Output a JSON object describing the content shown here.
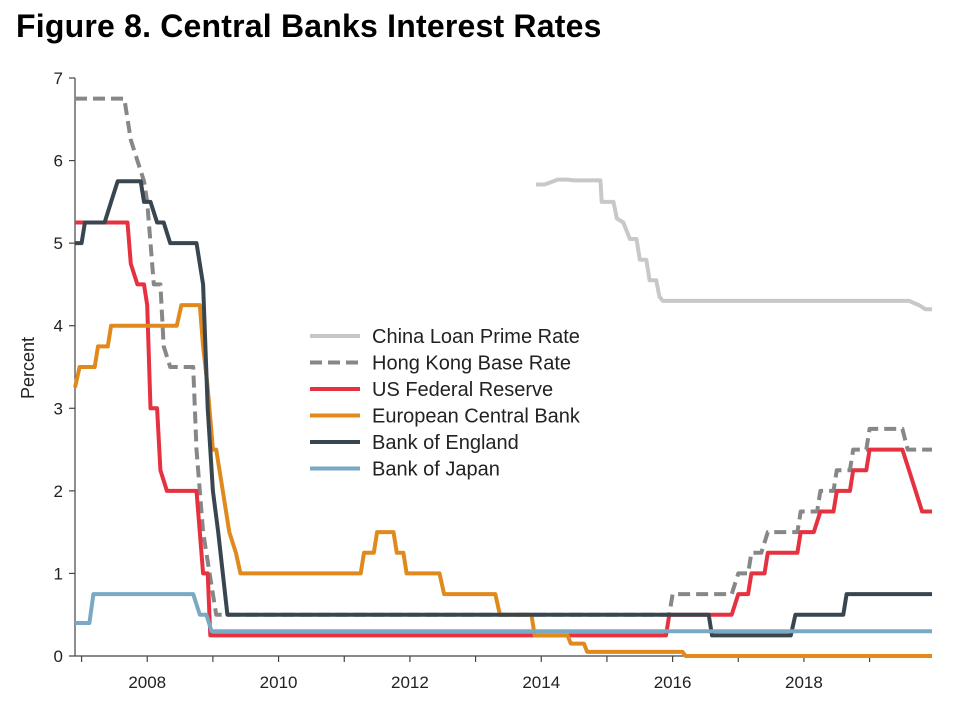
{
  "chart_data": {
    "type": "line",
    "title": "Figure 8. Central Banks Interest Rates",
    "ylabel": "Percent",
    "xlabel": "",
    "xlim": [
      2006.9,
      2019.95
    ],
    "ylim": [
      0,
      7
    ],
    "y_ticks": [
      "0",
      "1",
      "2",
      "3",
      "4",
      "5",
      "6",
      "7"
    ],
    "x_ticks": [
      "2008",
      "2010",
      "2012",
      "2014",
      "2016",
      "2018"
    ],
    "grid": false,
    "legend_position": "center",
    "series": [
      {
        "name": "China Loan Prime Rate",
        "color": "#c8c8c8",
        "dashed": false,
        "points": [
          [
            2013.92,
            5.71
          ],
          [
            2014.05,
            5.71
          ],
          [
            2014.12,
            5.73
          ],
          [
            2014.25,
            5.77
          ],
          [
            2014.4,
            5.77
          ],
          [
            2014.5,
            5.76
          ],
          [
            2014.9,
            5.76
          ],
          [
            2014.92,
            5.5
          ],
          [
            2015.1,
            5.5
          ],
          [
            2015.15,
            5.3
          ],
          [
            2015.25,
            5.25
          ],
          [
            2015.35,
            5.05
          ],
          [
            2015.45,
            5.05
          ],
          [
            2015.5,
            4.8
          ],
          [
            2015.6,
            4.8
          ],
          [
            2015.65,
            4.55
          ],
          [
            2015.75,
            4.55
          ],
          [
            2015.8,
            4.35
          ],
          [
            2015.85,
            4.3
          ],
          [
            2019.6,
            4.3
          ],
          [
            2019.75,
            4.25
          ],
          [
            2019.85,
            4.2
          ],
          [
            2019.95,
            4.2
          ]
        ]
      },
      {
        "name": "Hong Kong Base Rate",
        "color": "#878787",
        "dashed": true,
        "points": [
          [
            2006.9,
            6.75
          ],
          [
            2007.65,
            6.75
          ],
          [
            2007.75,
            6.25
          ],
          [
            2007.85,
            6.0
          ],
          [
            2007.95,
            5.75
          ],
          [
            2008.0,
            5.5
          ],
          [
            2008.05,
            5.0
          ],
          [
            2008.1,
            4.5
          ],
          [
            2008.2,
            4.5
          ],
          [
            2008.25,
            3.75
          ],
          [
            2008.35,
            3.5
          ],
          [
            2008.7,
            3.5
          ],
          [
            2008.75,
            2.5
          ],
          [
            2008.85,
            1.5
          ],
          [
            2008.95,
            1.0
          ],
          [
            2009.05,
            0.5
          ],
          [
            2015.95,
            0.5
          ],
          [
            2016.0,
            0.75
          ],
          [
            2016.9,
            0.75
          ],
          [
            2017.0,
            1.0
          ],
          [
            2017.15,
            1.0
          ],
          [
            2017.2,
            1.25
          ],
          [
            2017.35,
            1.25
          ],
          [
            2017.45,
            1.5
          ],
          [
            2017.9,
            1.5
          ],
          [
            2017.95,
            1.75
          ],
          [
            2018.2,
            1.75
          ],
          [
            2018.25,
            2.0
          ],
          [
            2018.45,
            2.0
          ],
          [
            2018.5,
            2.25
          ],
          [
            2018.7,
            2.25
          ],
          [
            2018.75,
            2.5
          ],
          [
            2018.95,
            2.5
          ],
          [
            2019.0,
            2.75
          ],
          [
            2019.5,
            2.75
          ],
          [
            2019.58,
            2.5
          ],
          [
            2019.95,
            2.5
          ]
        ]
      },
      {
        "name": "US Federal Reserve",
        "color": "#e63140",
        "dashed": false,
        "points": [
          [
            2006.9,
            5.25
          ],
          [
            2007.7,
            5.25
          ],
          [
            2007.75,
            4.75
          ],
          [
            2007.85,
            4.5
          ],
          [
            2007.95,
            4.5
          ],
          [
            2008.0,
            4.25
          ],
          [
            2008.05,
            3.0
          ],
          [
            2008.15,
            3.0
          ],
          [
            2008.2,
            2.25
          ],
          [
            2008.3,
            2.0
          ],
          [
            2008.75,
            2.0
          ],
          [
            2008.8,
            1.5
          ],
          [
            2008.85,
            1.0
          ],
          [
            2008.92,
            1.0
          ],
          [
            2008.96,
            0.25
          ],
          [
            2015.9,
            0.25
          ],
          [
            2015.95,
            0.5
          ],
          [
            2016.9,
            0.5
          ],
          [
            2017.0,
            0.75
          ],
          [
            2017.15,
            0.75
          ],
          [
            2017.2,
            1.0
          ],
          [
            2017.4,
            1.0
          ],
          [
            2017.45,
            1.25
          ],
          [
            2017.9,
            1.25
          ],
          [
            2017.95,
            1.5
          ],
          [
            2018.15,
            1.5
          ],
          [
            2018.25,
            1.75
          ],
          [
            2018.45,
            1.75
          ],
          [
            2018.5,
            2.0
          ],
          [
            2018.7,
            2.0
          ],
          [
            2018.75,
            2.25
          ],
          [
            2018.95,
            2.25
          ],
          [
            2019.0,
            2.5
          ],
          [
            2019.5,
            2.5
          ],
          [
            2019.6,
            2.25
          ],
          [
            2019.7,
            2.0
          ],
          [
            2019.8,
            1.75
          ],
          [
            2019.95,
            1.75
          ]
        ]
      },
      {
        "name": "European Central Bank",
        "color": "#e08a1e",
        "dashed": false,
        "points": [
          [
            2006.9,
            3.25
          ],
          [
            2006.97,
            3.5
          ],
          [
            2007.2,
            3.5
          ],
          [
            2007.25,
            3.75
          ],
          [
            2007.4,
            3.75
          ],
          [
            2007.45,
            4.0
          ],
          [
            2008.45,
            4.0
          ],
          [
            2008.52,
            4.25
          ],
          [
            2008.8,
            4.25
          ],
          [
            2008.85,
            3.75
          ],
          [
            2008.92,
            3.25
          ],
          [
            2009.0,
            2.5
          ],
          [
            2009.05,
            2.5
          ],
          [
            2009.15,
            2.0
          ],
          [
            2009.25,
            1.5
          ],
          [
            2009.35,
            1.25
          ],
          [
            2009.42,
            1.0
          ],
          [
            2011.25,
            1.0
          ],
          [
            2011.3,
            1.25
          ],
          [
            2011.45,
            1.25
          ],
          [
            2011.5,
            1.5
          ],
          [
            2011.75,
            1.5
          ],
          [
            2011.8,
            1.25
          ],
          [
            2011.9,
            1.25
          ],
          [
            2011.95,
            1.0
          ],
          [
            2012.45,
            1.0
          ],
          [
            2012.52,
            0.75
          ],
          [
            2013.3,
            0.75
          ],
          [
            2013.37,
            0.5
          ],
          [
            2013.85,
            0.5
          ],
          [
            2013.9,
            0.25
          ],
          [
            2014.4,
            0.25
          ],
          [
            2014.45,
            0.15
          ],
          [
            2014.65,
            0.15
          ],
          [
            2014.7,
            0.05
          ],
          [
            2016.15,
            0.05
          ],
          [
            2016.2,
            0.0
          ],
          [
            2019.95,
            0.0
          ]
        ]
      },
      {
        "name": "Bank of England",
        "color": "#394650",
        "dashed": false,
        "points": [
          [
            2006.9,
            5.0
          ],
          [
            2007.0,
            5.0
          ],
          [
            2007.05,
            5.25
          ],
          [
            2007.35,
            5.25
          ],
          [
            2007.45,
            5.5
          ],
          [
            2007.55,
            5.75
          ],
          [
            2007.9,
            5.75
          ],
          [
            2007.95,
            5.5
          ],
          [
            2008.05,
            5.5
          ],
          [
            2008.15,
            5.25
          ],
          [
            2008.25,
            5.25
          ],
          [
            2008.35,
            5.0
          ],
          [
            2008.75,
            5.0
          ],
          [
            2008.85,
            4.5
          ],
          [
            2008.92,
            3.0
          ],
          [
            2009.0,
            2.0
          ],
          [
            2009.08,
            1.5
          ],
          [
            2009.15,
            1.0
          ],
          [
            2009.22,
            0.5
          ],
          [
            2016.55,
            0.5
          ],
          [
            2016.6,
            0.25
          ],
          [
            2017.8,
            0.25
          ],
          [
            2017.87,
            0.5
          ],
          [
            2018.6,
            0.5
          ],
          [
            2018.65,
            0.75
          ],
          [
            2019.95,
            0.75
          ]
        ]
      },
      {
        "name": "Bank of Japan",
        "color": "#7aa9c4",
        "dashed": false,
        "points": [
          [
            2006.9,
            0.4
          ],
          [
            2007.12,
            0.4
          ],
          [
            2007.18,
            0.75
          ],
          [
            2008.7,
            0.75
          ],
          [
            2008.8,
            0.5
          ],
          [
            2008.9,
            0.5
          ],
          [
            2008.98,
            0.3
          ],
          [
            2019.95,
            0.3
          ]
        ]
      }
    ]
  }
}
